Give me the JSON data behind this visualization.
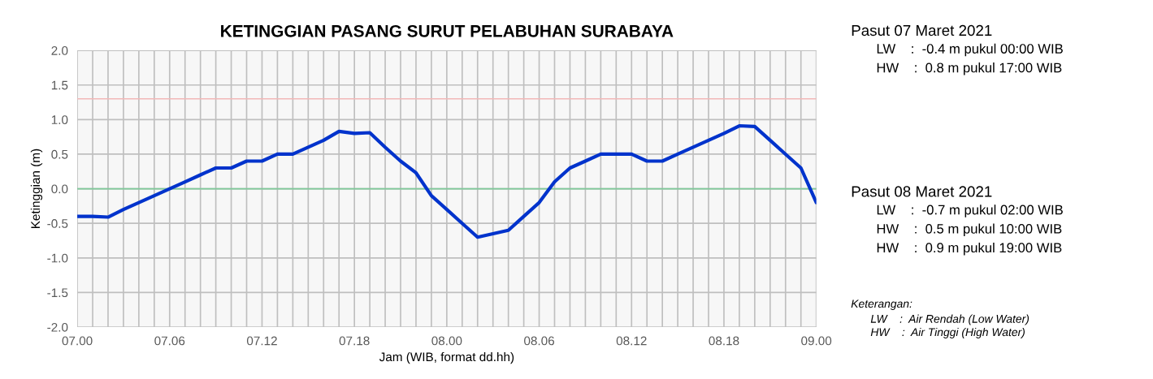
{
  "chart_data": {
    "type": "line",
    "title": "KETINGGIAN PASANG SURUT PELABUHAN SURABAYA",
    "xlabel": "Jam (WIB, format dd.hh)",
    "ylabel": "Ketinggian (m)",
    "categories": [
      "07.00",
      null,
      null,
      null,
      null,
      null,
      "07.06",
      null,
      null,
      null,
      null,
      null,
      "07.12",
      null,
      null,
      null,
      null,
      null,
      "07.18",
      null,
      null,
      null,
      null,
      null,
      "08.00",
      null,
      null,
      null,
      null,
      null,
      "08.06",
      null,
      null,
      null,
      null,
      null,
      "08.12",
      null,
      null,
      null,
      null,
      null,
      "08.18",
      null,
      null,
      null,
      null,
      null,
      "09.00"
    ],
    "series": [
      {
        "color": "#0033cc",
        "values": [
          -0.4,
          -0.4,
          -0.41,
          -0.3,
          -0.2,
          -0.1,
          0.0,
          0.1,
          0.2,
          0.3,
          0.3,
          0.4,
          0.4,
          0.5,
          0.5,
          0.6,
          0.7,
          0.83,
          0.8,
          0.81,
          0.6,
          0.4,
          0.23,
          -0.1,
          -0.3,
          -0.5,
          -0.7,
          -0.65,
          -0.6,
          -0.4,
          -0.2,
          0.1,
          0.3,
          0.4,
          0.5,
          0.5,
          0.5,
          0.4,
          0.4,
          0.5,
          0.6,
          0.7,
          0.8,
          0.91,
          0.9,
          0.7,
          0.5,
          0.3,
          -0.2
        ]
      }
    ],
    "ylim": [
      -2.0,
      2.0
    ],
    "yticks": [
      {
        "value": -2.0,
        "label": "-2.0"
      },
      {
        "value": -1.5,
        "label": "-1.5"
      },
      {
        "value": -1.0,
        "label": "-1.0"
      },
      {
        "value": -0.5,
        "label": "-0.5"
      },
      {
        "value": 0.0,
        "label": "0.0"
      },
      {
        "value": 0.5,
        "label": "0.5"
      },
      {
        "value": 1.0,
        "label": "1.0"
      },
      {
        "value": 1.5,
        "label": "1.5"
      },
      {
        "value": 2.0,
        "label": "2.0"
      }
    ],
    "grid": true,
    "line_style": "solid",
    "ref_lines": [
      {
        "axis": "y",
        "value": 1.3,
        "color": "#f2b8b8"
      },
      {
        "axis": "y",
        "value": 0.0,
        "color": "#7fc99a"
      }
    ],
    "annotations": [
      "Pasut 07 Maret 2021",
      "LW    :  -0.4 m pukul 00:00 WIB",
      "HW    :  0.8 m pukul 17:00 WIB",
      "Pasut 08 Maret 2021",
      "LW    :  -0.7 m pukul 02:00 WIB",
      "HW    :  0.5 m pukul 10:00 WIB",
      "HW    :  0.9 m pukul 19:00 WIB",
      "Keterangan:",
      "LW    :  Air Rendah (Low Water)",
      "HW    :  Air Tinggi (High Water)"
    ]
  }
}
